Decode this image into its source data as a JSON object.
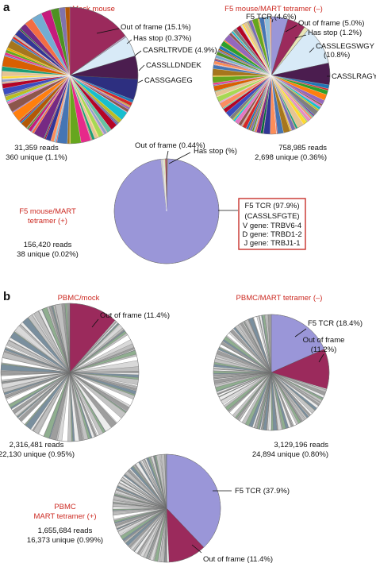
{
  "panels": {
    "a": "a",
    "b": "b"
  },
  "chart_data": [
    {
      "type": "pie",
      "panel": "a",
      "title": "Mock mouse",
      "reads": "31,359 reads",
      "unique": "360 unique (1.1%)",
      "slices": [
        {
          "label": "Out of frame (15.1%)",
          "value": 15.1,
          "color": "#9b2a5c"
        },
        {
          "label": "Has stop (0.37%)",
          "value": 0.37,
          "color": "#c7a8c8"
        },
        {
          "label": "CASRLTRVDE (4.9%)",
          "value": 4.9,
          "color": "#d8eaf7"
        },
        {
          "label": "CASSLLDNDEK",
          "value": 5.5,
          "color": "#4b1d4f"
        },
        {
          "label": "CASSGAGEG",
          "value": 5.0,
          "color": "#2d2f80"
        }
      ],
      "other_count": 80
    },
    {
      "type": "pie",
      "panel": "a",
      "title": "F5 mouse/MART tetramer (–)",
      "reads": "758,985 reads",
      "unique": "2,698 unique (0.36%)",
      "slices": [
        {
          "label": "F5 TCR (4.6%)",
          "value": 4.6,
          "color": "#9a96d8"
        },
        {
          "label": "Out of frame (5.0%)",
          "value": 5.0,
          "color": "#9b2a5c"
        },
        {
          "label": "Has stop (1.2%)",
          "value": 1.2,
          "color": "#e9e5b6"
        },
        {
          "label": "CASSLEGSWGY (10.8%)",
          "value": 10.8,
          "color": "#d8eaf7"
        },
        {
          "label": "CASSLRAGYE",
          "value": 6.0,
          "color": "#4b1d4f"
        }
      ],
      "other_count": 110
    },
    {
      "type": "pie",
      "panel": "a",
      "title": "F5 mouse/MART tetramer (+)",
      "reads": "156,420 reads",
      "unique": "38 unique (0.02%)",
      "slices": [
        {
          "label": "Out of frame (0.44%)",
          "value": 0.44,
          "color": "#9b2a5c"
        },
        {
          "label": "Has stop (%)",
          "value": 0.3,
          "color": "#e9c46a"
        },
        {
          "label": "F5 TCR (97.9%)",
          "value": 97.9,
          "color": "#9a96d8"
        }
      ],
      "other_count": 6,
      "box": [
        "F5 TCR (97.9%)",
        "(CASSLSFGTE)",
        "V gene: TRBV6-4",
        "D gene: TRBD1-2",
        "J gene: TRBJ1-1"
      ]
    },
    {
      "type": "pie",
      "panel": "b",
      "title": "PBMC/mock",
      "reads": "2,316,481 reads",
      "unique": "22,130 unique (0.95%)",
      "slices": [
        {
          "label": "Out of frame (11.4%)",
          "value": 11.4,
          "color": "#9b2a5c"
        }
      ],
      "other_count": 180
    },
    {
      "type": "pie",
      "panel": "b",
      "title": "PBMC/MART tetramer (–)",
      "reads": "3,129,196 reads",
      "unique": "24,894 unique (0.80%)",
      "slices": [
        {
          "label": "F5 TCR (18.4%)",
          "value": 18.4,
          "color": "#9a96d8"
        },
        {
          "label": "Out of frame (11.2%)",
          "value": 11.2,
          "color": "#9b2a5c"
        }
      ],
      "other_count": 180
    },
    {
      "type": "pie",
      "panel": "b",
      "title": "PBMC MART tetramer (+)",
      "reads": "1,655,684 reads",
      "unique": "16,373 unique (0.99%)",
      "slices": [
        {
          "label": "F5 TCR (37.9%)",
          "value": 37.9,
          "color": "#9a96d8"
        },
        {
          "label": "Out of frame (11.4%)",
          "value": 11.4,
          "color": "#9b2a5c"
        }
      ],
      "other_count": 150
    }
  ]
}
